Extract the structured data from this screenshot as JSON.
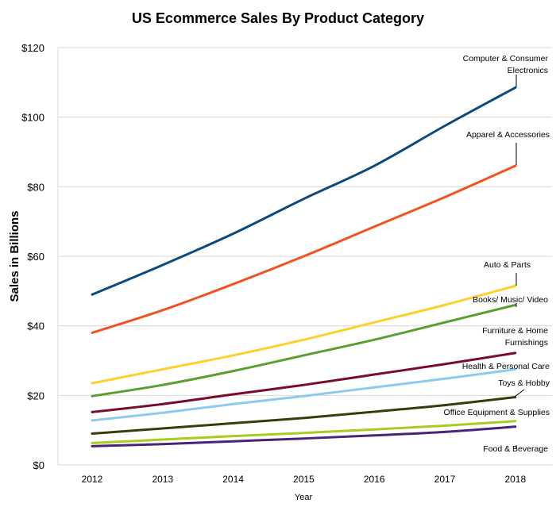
{
  "chart_data": {
    "type": "line",
    "title": "US Ecommerce Sales By Product Category",
    "xlabel": "Year",
    "ylabel": "Sales in Billions",
    "x": [
      2012,
      2013,
      2014,
      2015,
      2016,
      2017,
      2018
    ],
    "ylim": [
      0,
      120
    ],
    "yticks": [
      0,
      20,
      40,
      60,
      80,
      100,
      120
    ],
    "ytick_labels": [
      "$0",
      "$20",
      "$40",
      "$60",
      "$80",
      "$100",
      "$120"
    ],
    "grid": "horizontal",
    "legend": "none (series labeled at line ends)",
    "series": [
      {
        "name": "Computer & Consumer Electronics",
        "color": "#0b4a7d",
        "values": [
          49,
          57.5,
          66.5,
          76.5,
          86,
          97.5,
          108.5
        ]
      },
      {
        "name": "Apparel & Accessories",
        "color": "#f4511e",
        "values": [
          38,
          44.5,
          52,
          60,
          68.5,
          77,
          86
        ]
      },
      {
        "name": "Auto & Parts",
        "color": "#fbd12a",
        "values": [
          23.5,
          27.5,
          31.5,
          36,
          41,
          46,
          51.5
        ]
      },
      {
        "name": "Books/ Music/ Video",
        "color": "#5a9e2f",
        "values": [
          19.8,
          23,
          27,
          31.5,
          36,
          41,
          46
        ]
      },
      {
        "name": "Furniture & Home Furnishings",
        "color": "#7a0c2a",
        "values": [
          15.2,
          17.5,
          20.3,
          23,
          26,
          29,
          32.2
        ]
      },
      {
        "name": "Health & Personal Care",
        "color": "#8ec9f0",
        "values": [
          12.8,
          15,
          17.5,
          19.8,
          22.3,
          24.8,
          27.5
        ]
      },
      {
        "name": "Toys & Hobby",
        "color": "#3a3a0a",
        "values": [
          9,
          10.5,
          12,
          13.5,
          15.3,
          17.2,
          19.5
        ]
      },
      {
        "name": "Office Equipment & Supplies",
        "color": "#a8cc1f",
        "values": [
          6.3,
          7.3,
          8.3,
          9.2,
          10.2,
          11.3,
          12.6
        ]
      },
      {
        "name": "Food & Beverage",
        "color": "#4b2378",
        "values": [
          5.4,
          6,
          6.8,
          7.6,
          8.5,
          9.5,
          11
        ]
      }
    ],
    "labels": [
      {
        "lines": [
          "Computer & Consumer",
          "Electronics"
        ]
      },
      {
        "lines": [
          "Apparel & Accessories"
        ]
      },
      {
        "lines": [
          "Auto & Parts"
        ]
      },
      {
        "lines": [
          "Books/ Music/ Video"
        ]
      },
      {
        "lines": [
          "Furniture & Home",
          "Furnishings"
        ]
      },
      {
        "lines": [
          "Health & Personal Care"
        ]
      },
      {
        "lines": [
          "Toys & Hobby"
        ]
      },
      {
        "lines": [
          "Office Equipment & Supplies"
        ]
      },
      {
        "lines": [
          "Food & Beverage"
        ]
      }
    ]
  }
}
